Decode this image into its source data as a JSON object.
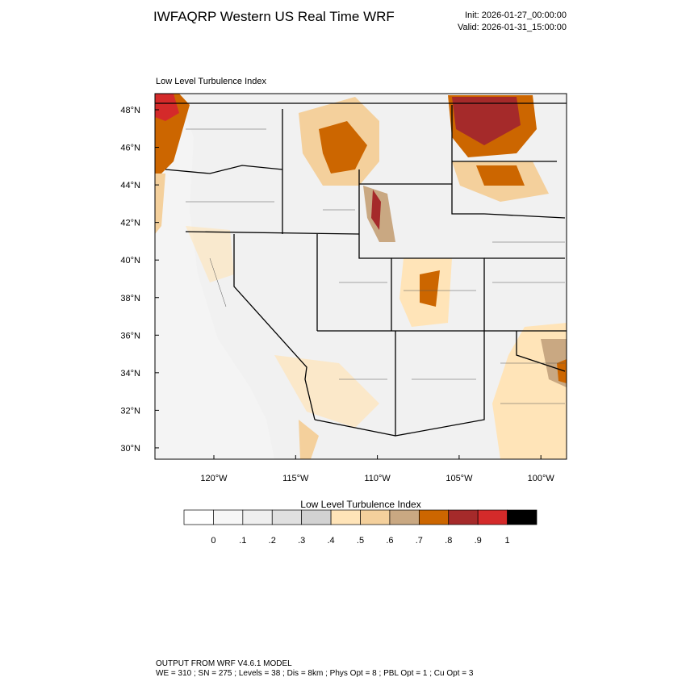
{
  "header": {
    "title": "IWFAQRP Western US Real Time WRF",
    "init": "Init: 2026-01-27_00:00:00",
    "valid": "Valid: 2026-01-31_15:00:00"
  },
  "map": {
    "title": "Low Level Turbulence Index",
    "lat_labels": [
      "48°N",
      "46°N",
      "44°N",
      "42°N",
      "40°N",
      "38°N",
      "36°N",
      "34°N",
      "32°N",
      "30°N"
    ],
    "lon_labels": [
      "120°W",
      "115°W",
      "110°W",
      "105°W",
      "100°W"
    ]
  },
  "colorbar": {
    "title": "Low Level Turbulence Index",
    "labels": [
      "0",
      ".1",
      ".2",
      ".3",
      ".4",
      ".5",
      ".6",
      ".7",
      ".8",
      ".9",
      "1"
    ],
    "colors": [
      "#ffffff",
      "#f7f7f7",
      "#efefef",
      "#e0e0e0",
      "#d2d2d2",
      "#ffe4b8",
      "#f4d09c",
      "#c9a882",
      "#cc6600",
      "#a52a2a",
      "#d42a2a",
      "#000000"
    ]
  },
  "footer": {
    "line1": "OUTPUT FROM WRF V4.6.1 MODEL",
    "line2": "WE = 310 ; SN = 275 ; Levels = 38 ; Dis = 8km ; Phys Opt = 8 ; PBL Opt = 1 ; Cu Opt = 3"
  }
}
